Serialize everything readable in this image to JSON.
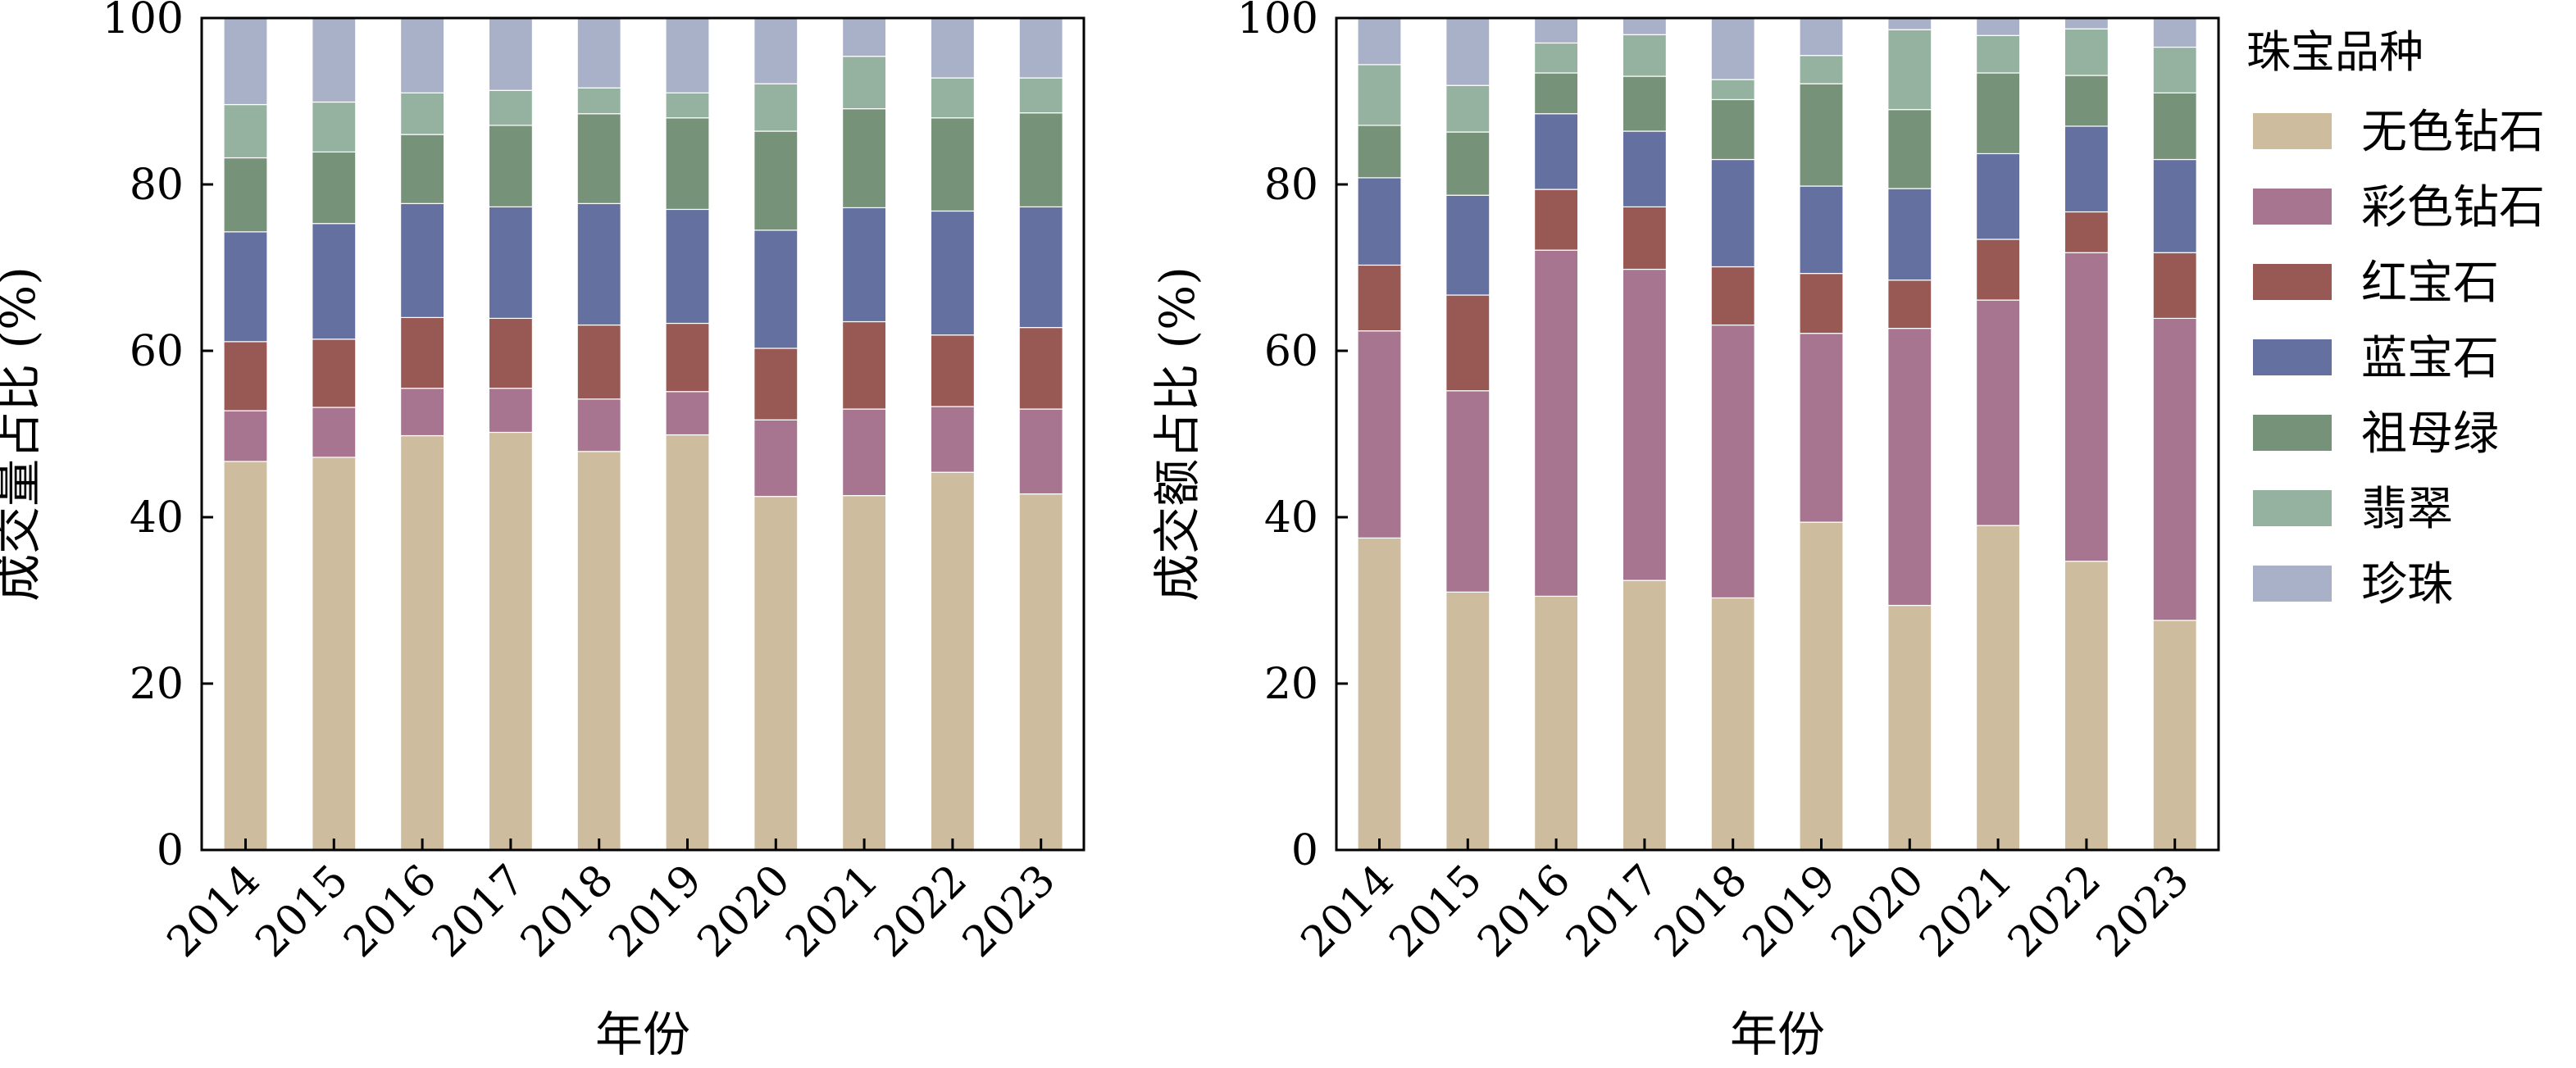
{
  "chart_data": [
    {
      "type": "bar",
      "stacked": true,
      "categories": [
        "2014",
        "2015",
        "2016",
        "2017",
        "2018",
        "2019",
        "2020",
        "2021",
        "2022",
        "2023"
      ],
      "ylabel": "成交量占比 (%)",
      "xlabel": "年份",
      "ylim": [
        0,
        100
      ],
      "yticks": [
        "0",
        "20",
        "40",
        "60",
        "80",
        "100"
      ],
      "series": [
        {
          "name": "无色钻石",
          "color": "#cdbd9e",
          "values": [
            46.7,
            47.2,
            49.8,
            50.2,
            47.9,
            49.9,
            42.5,
            42.6,
            45.4,
            42.8
          ]
        },
        {
          "name": "彩色钻石",
          "color": "#a87590",
          "values": [
            6.1,
            6.0,
            5.7,
            5.3,
            6.3,
            5.2,
            9.2,
            10.4,
            7.9,
            10.2
          ]
        },
        {
          "name": "红宝石",
          "color": "#985853",
          "values": [
            8.3,
            8.2,
            8.5,
            8.4,
            8.9,
            8.2,
            8.6,
            10.5,
            8.6,
            9.8
          ]
        },
        {
          "name": "蓝宝石",
          "color": "#6470a0",
          "values": [
            13.2,
            13.9,
            13.7,
            13.4,
            14.6,
            13.7,
            14.2,
            13.7,
            14.9,
            14.5
          ]
        },
        {
          "name": "祖母绿",
          "color": "#769279",
          "values": [
            8.9,
            8.6,
            8.3,
            9.8,
            10.8,
            11.0,
            11.9,
            11.9,
            11.2,
            11.3
          ]
        },
        {
          "name": "翡翠",
          "color": "#94b29f",
          "values": [
            6.4,
            6.0,
            5.0,
            4.2,
            3.1,
            3.0,
            5.7,
            6.3,
            4.8,
            4.2
          ]
        },
        {
          "name": "珍珠",
          "color": "#a9b1c8",
          "values": [
            10.4,
            10.1,
            9.0,
            8.7,
            8.4,
            9.0,
            7.9,
            4.6,
            7.2,
            7.2
          ]
        }
      ]
    },
    {
      "type": "bar",
      "stacked": true,
      "categories": [
        "2014",
        "2015",
        "2016",
        "2017",
        "2018",
        "2019",
        "2020",
        "2021",
        "2022",
        "2023"
      ],
      "ylabel": "成交额占比 (%)",
      "xlabel": "年份",
      "ylim": [
        0,
        100
      ],
      "yticks": [
        "0",
        "20",
        "40",
        "60",
        "80",
        "100"
      ],
      "series": [
        {
          "name": "无色钻石",
          "color": "#cdbd9e",
          "values": [
            37.5,
            31.0,
            30.5,
            32.4,
            30.3,
            39.4,
            29.4,
            39.0,
            34.7,
            27.6
          ]
        },
        {
          "name": "彩色钻石",
          "color": "#a87590",
          "values": [
            24.9,
            24.2,
            41.6,
            37.4,
            32.8,
            22.7,
            33.3,
            27.1,
            37.1,
            36.3
          ]
        },
        {
          "name": "红宝石",
          "color": "#985853",
          "values": [
            7.9,
            11.5,
            7.3,
            7.5,
            7.0,
            7.2,
            5.8,
            7.3,
            4.9,
            7.9
          ]
        },
        {
          "name": "蓝宝石",
          "color": "#6470a0",
          "values": [
            10.5,
            12.0,
            9.1,
            9.1,
            12.9,
            10.5,
            11.0,
            10.3,
            10.3,
            11.2
          ]
        },
        {
          "name": "祖母绿",
          "color": "#769279",
          "values": [
            6.3,
            7.6,
            4.9,
            6.6,
            7.2,
            12.3,
            9.5,
            9.7,
            6.1,
            8.0
          ]
        },
        {
          "name": "翡翠",
          "color": "#94b29f",
          "values": [
            7.3,
            5.6,
            3.6,
            5.0,
            2.4,
            3.4,
            9.6,
            4.5,
            5.6,
            5.5
          ]
        },
        {
          "name": "珍珠",
          "color": "#a9b1c8",
          "values": [
            5.6,
            8.1,
            3.0,
            2.0,
            7.4,
            4.5,
            1.4,
            2.1,
            1.3,
            3.5
          ]
        }
      ]
    }
  ],
  "legend": {
    "title": "珠宝品种",
    "items": [
      "无色钻石",
      "彩色钻石",
      "红宝石",
      "蓝宝石",
      "祖母绿",
      "翡翠",
      "珍珠"
    ]
  }
}
